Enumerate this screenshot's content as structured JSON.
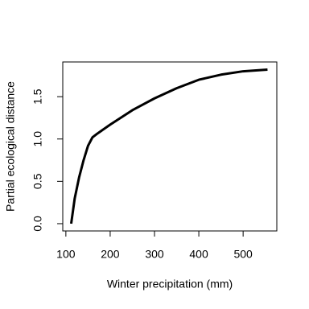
{
  "chart_data": {
    "type": "line",
    "x_label": "Winter precipitation (mm)",
    "y_label": "Partial ecological distance",
    "x": [
      112,
      120,
      130,
      140,
      150,
      160,
      170,
      200,
      250,
      300,
      350,
      400,
      450,
      500,
      555
    ],
    "series": [
      {
        "color": "#000000",
        "values": [
          0,
          0.3,
          0.55,
          0.75,
          0.92,
          1.02,
          1.06,
          1.17,
          1.34,
          1.48,
          1.6,
          1.7,
          1.76,
          1.8,
          1.82
        ]
      }
    ],
    "xlim": [
      93,
      576
    ],
    "ylim": [
      -0.086,
      1.91
    ],
    "xticks": [
      100,
      200,
      300,
      400,
      500
    ],
    "yticks": [
      {
        "value": 0,
        "label": "0.0"
      },
      0.5,
      {
        "value": 1,
        "label": "1.0"
      },
      1.5
    ]
  }
}
